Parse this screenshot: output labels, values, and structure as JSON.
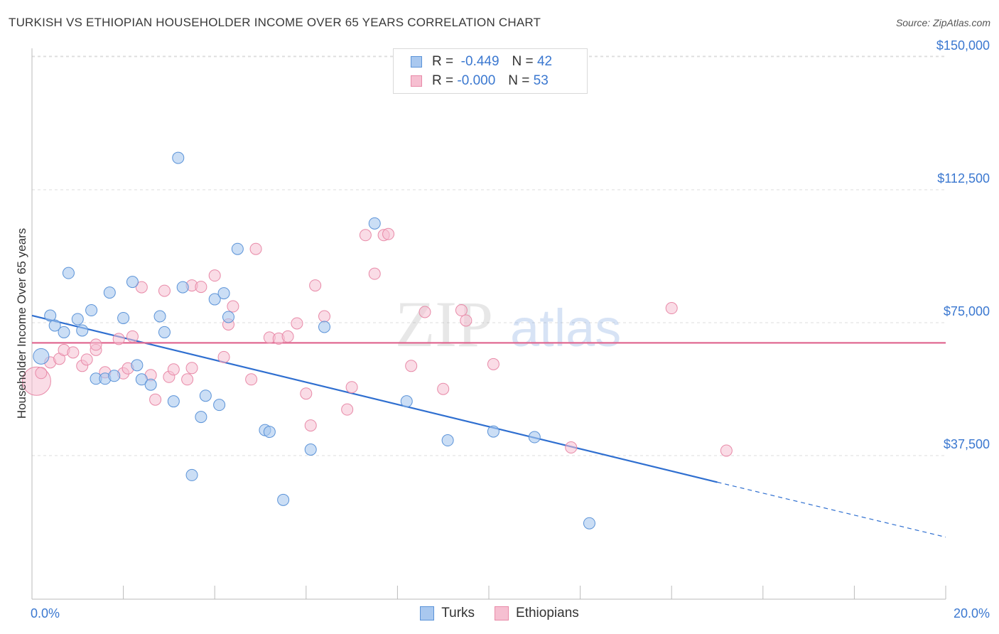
{
  "header": {
    "title": "TURKISH VS ETHIOPIAN HOUSEHOLDER INCOME OVER 65 YEARS CORRELATION CHART",
    "source": "Source: ZipAtlas.com"
  },
  "legend": {
    "turks": {
      "r_label": "R =",
      "r_value": "-0.449",
      "n_label": "N =",
      "n_value": "42"
    },
    "ethiopians": {
      "r_label": "R =",
      "r_value": "-0.000",
      "n_label": "N =",
      "n_value": "53"
    }
  },
  "bottom_legend": {
    "turks": "Turks",
    "ethiopians": "Ethiopians"
  },
  "watermark": {
    "zip": "ZIP",
    "atlas": "atlas"
  },
  "colors": {
    "turks_fill": "#a9c8ef",
    "turks_stroke": "#5b93d8",
    "turks_line": "#2f6fd0",
    "eth_fill": "#f6bfd1",
    "eth_stroke": "#e88aa8",
    "eth_line": "#e06a92",
    "label_blue": "#3b78d0",
    "grid": "#dddddd"
  },
  "chart_data": {
    "type": "scatter",
    "title": "TURKISH VS ETHIOPIAN HOUSEHOLDER INCOME OVER 65 YEARS CORRELATION CHART",
    "xlabel": "",
    "ylabel": "Householder Income Over 65 years",
    "xlim": [
      0,
      20
    ],
    "ylim": [
      0,
      155000
    ],
    "x_tick_labels": [
      "0.0%",
      "20.0%"
    ],
    "y_ticks": [
      37500,
      75000,
      112500,
      150000
    ],
    "y_tick_labels": [
      "$37,500",
      "$75,000",
      "$112,500",
      "$150,000"
    ],
    "series": [
      {
        "name": "Turks",
        "trend": {
          "x0": 0,
          "y0": 77000,
          "x1": 15.0,
          "y1": 30000,
          "dashed_to_x": 20,
          "dashed_to_y": 14500
        },
        "points": [
          [
            0.2,
            65500,
            2
          ],
          [
            0.4,
            77000,
            1
          ],
          [
            0.5,
            74200,
            1
          ],
          [
            0.7,
            72300,
            1
          ],
          [
            0.8,
            89000,
            1
          ],
          [
            1.0,
            76000,
            1
          ],
          [
            1.1,
            72800,
            1
          ],
          [
            1.3,
            78500,
            1
          ],
          [
            1.4,
            59200,
            1
          ],
          [
            1.6,
            59200,
            1
          ],
          [
            1.7,
            83500,
            1
          ],
          [
            1.8,
            60000,
            1
          ],
          [
            2.0,
            76300,
            1
          ],
          [
            2.2,
            86500,
            1
          ],
          [
            2.3,
            63000,
            1
          ],
          [
            2.4,
            59000,
            1
          ],
          [
            2.6,
            57500,
            1
          ],
          [
            2.8,
            76800,
            1
          ],
          [
            2.9,
            72300,
            1
          ],
          [
            3.1,
            52800,
            1
          ],
          [
            3.2,
            121500,
            1
          ],
          [
            3.3,
            85000,
            1
          ],
          [
            3.5,
            32000,
            1
          ],
          [
            3.7,
            48400,
            1
          ],
          [
            3.8,
            54400,
            1
          ],
          [
            4.0,
            81600,
            1
          ],
          [
            4.1,
            51800,
            1
          ],
          [
            4.2,
            83300,
            1
          ],
          [
            4.3,
            76600,
            1
          ],
          [
            4.5,
            95800,
            1
          ],
          [
            5.1,
            44700,
            1
          ],
          [
            5.2,
            44200,
            1
          ],
          [
            5.5,
            25000,
            1
          ],
          [
            6.1,
            39200,
            1
          ],
          [
            6.4,
            73800,
            1
          ],
          [
            7.5,
            103000,
            1
          ],
          [
            8.2,
            52800,
            1
          ],
          [
            9.1,
            41800,
            1
          ],
          [
            10.1,
            44300,
            1
          ],
          [
            11.0,
            42700,
            1
          ],
          [
            12.2,
            18400,
            1
          ]
        ]
      },
      {
        "name": "Ethiopians",
        "trend": {
          "x0": 0,
          "y0": 69300,
          "x1": 20,
          "y1": 69300
        },
        "points": [
          [
            0.1,
            58500,
            3
          ],
          [
            0.2,
            60800,
            1
          ],
          [
            0.4,
            63800,
            1
          ],
          [
            0.6,
            64800,
            1
          ],
          [
            0.7,
            67300,
            1
          ],
          [
            0.9,
            66600,
            1
          ],
          [
            1.1,
            62800,
            1
          ],
          [
            1.2,
            64600,
            1
          ],
          [
            1.4,
            67300,
            1
          ],
          [
            1.4,
            68800,
            1
          ],
          [
            1.6,
            61000,
            1
          ],
          [
            1.9,
            70400,
            1
          ],
          [
            2.0,
            60700,
            1
          ],
          [
            2.1,
            62100,
            1
          ],
          [
            2.2,
            71100,
            1
          ],
          [
            2.4,
            85000,
            1
          ],
          [
            2.6,
            60200,
            1
          ],
          [
            2.7,
            53300,
            1
          ],
          [
            2.9,
            84000,
            1
          ],
          [
            3.0,
            59700,
            1
          ],
          [
            3.1,
            61800,
            1
          ],
          [
            3.4,
            59000,
            1
          ],
          [
            3.5,
            62200,
            1
          ],
          [
            3.5,
            85500,
            1
          ],
          [
            3.7,
            85100,
            1
          ],
          [
            4.0,
            88300,
            1
          ],
          [
            4.2,
            65300,
            1
          ],
          [
            4.3,
            74500,
            1
          ],
          [
            4.4,
            79600,
            1
          ],
          [
            4.8,
            59000,
            1
          ],
          [
            4.9,
            95800,
            1
          ],
          [
            5.2,
            70800,
            1
          ],
          [
            5.4,
            70500,
            1
          ],
          [
            5.6,
            71100,
            1
          ],
          [
            5.8,
            74800,
            1
          ],
          [
            6.0,
            55000,
            1
          ],
          [
            6.1,
            46000,
            1
          ],
          [
            6.2,
            85500,
            1
          ],
          [
            6.4,
            76800,
            1
          ],
          [
            6.9,
            50500,
            1
          ],
          [
            7.0,
            56800,
            1
          ],
          [
            7.3,
            99700,
            1
          ],
          [
            7.5,
            88800,
            1
          ],
          [
            7.7,
            99700,
            1
          ],
          [
            7.8,
            100000,
            1
          ],
          [
            8.3,
            62800,
            1
          ],
          [
            8.6,
            78000,
            1
          ],
          [
            9.0,
            56300,
            1
          ],
          [
            9.4,
            78500,
            1
          ],
          [
            9.5,
            75600,
            1
          ],
          [
            10.1,
            63300,
            1
          ],
          [
            11.8,
            39800,
            1
          ],
          [
            14.0,
            79100,
            1
          ],
          [
            15.2,
            38900,
            1
          ]
        ]
      }
    ]
  }
}
